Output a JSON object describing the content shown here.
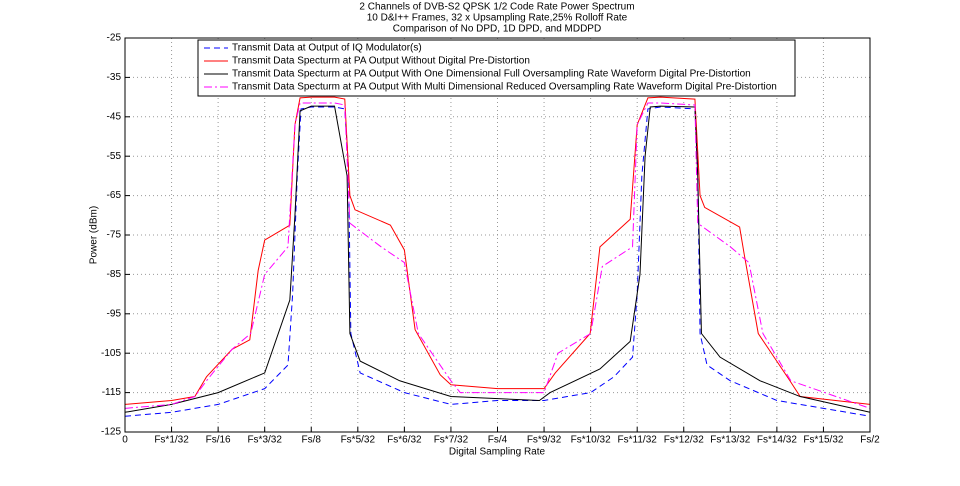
{
  "chart_data": {
    "type": "line",
    "title": [
      "2 Channels of DVB-S2 QPSK 1/2 Code Rate Power Spectrum",
      "10 D&I++ Frames, 32 x Upsampling Rate,25% Rolloff Rate",
      "Comparison of No DPD, 1D DPD, and MDDPD"
    ],
    "x_label": "Digital Sampling Rate",
    "y_label": "Power (dBm)",
    "xlim": [
      0,
      16
    ],
    "ylim": [
      -125,
      -25
    ],
    "xticks": [
      0,
      {
        "value": 1,
        "label": "Fs*1/32"
      },
      {
        "value": 2,
        "label": "Fs/16"
      },
      {
        "value": 3,
        "label": "Fs*3/32"
      },
      {
        "value": 4,
        "label": "Fs/8"
      },
      {
        "value": 5,
        "label": "Fs*5/32"
      },
      {
        "value": 6,
        "label": "Fs*6/32"
      },
      {
        "value": 7,
        "label": "Fs*7/32"
      },
      {
        "value": 8,
        "label": "Fs/4"
      },
      {
        "value": 9,
        "label": "Fs*9/32"
      },
      {
        "value": 10,
        "label": "Fs*10/32"
      },
      {
        "value": 11,
        "label": "Fs*11/32"
      },
      {
        "value": 12,
        "label": "Fs*12/32"
      },
      {
        "value": 13,
        "label": "Fs*13/32"
      },
      {
        "value": 14,
        "label": "Fs*14/32"
      },
      {
        "value": 15,
        "label": "Fs*15/32"
      },
      {
        "value": 16,
        "label": "Fs/2"
      }
    ],
    "yticks": [
      -125,
      -115,
      -105,
      -95,
      -85,
      -75,
      -65,
      -55,
      -45,
      -35,
      -25
    ],
    "grid": true,
    "legend": "upper left",
    "series": [
      {
        "name": "Transmit Data at Output of IQ Modulator(s)",
        "color": "#0000ff",
        "dash": "6 4",
        "x": [
          0,
          1,
          2,
          3,
          3.5,
          3.6,
          3.7,
          3.78,
          4,
          4.5,
          4.72,
          4.8,
          4.85,
          5.05,
          6,
          7,
          8,
          9,
          9.5,
          10,
          10.5,
          10.9,
          11.0,
          11.1,
          11.23,
          11.5,
          12.24,
          12.3,
          12.35,
          12.5,
          13,
          14,
          15,
          16
        ],
        "values": [
          -121,
          -120,
          -118,
          -114,
          -108,
          -90,
          -60,
          -43,
          -42.5,
          -42.5,
          -43,
          -58,
          -100,
          -110,
          -115,
          -118,
          -117,
          -117,
          -116,
          -115,
          -111,
          -106,
          -90,
          -60,
          -43,
          -42.5,
          -43,
          -58,
          -100,
          -108,
          -112,
          -117,
          -119,
          -121
        ]
      },
      {
        "name": "Transmit Data Specturm at PA Output Without Digital Pre-Distortion",
        "color": "#ff0000",
        "dash": "none",
        "x": [
          0,
          1,
          1.5,
          1.75,
          2.3,
          2.68,
          2.86,
          3,
          3.54,
          3.65,
          3.76,
          4,
          4.5,
          4.72,
          4.83,
          4.94,
          5.7,
          6,
          6.23,
          6.77,
          7,
          8,
          9,
          9.24,
          9.99,
          10.2,
          10.85,
          11,
          11.23,
          11.5,
          12.24,
          12.35,
          12.45,
          13.2,
          13.3,
          13.6,
          14.28,
          14.5,
          16
        ],
        "values": [
          -118,
          -117,
          -116,
          -111,
          -104,
          -101.6,
          -84,
          -76.3,
          -72.5,
          -47,
          -40.2,
          -40,
          -40,
          -40.5,
          -65,
          -68.6,
          -72.5,
          -78.8,
          -99,
          -110.5,
          -113,
          -114,
          -114,
          -110,
          -100,
          -78,
          -71,
          -47,
          -40.2,
          -40,
          -40.5,
          -65,
          -68,
          -73,
          -80,
          -100,
          -112,
          -116,
          -118
        ]
      },
      {
        "name": "Transmit Data Specturm at PA Output With One Dimensional Full Oversampling Rate Waveform Digital Pre-Distortion",
        "color": "#000000",
        "dash": "none",
        "x": [
          0,
          1,
          2,
          3,
          3.54,
          3.65,
          3.76,
          4,
          4.5,
          4.77,
          4.83,
          5.05,
          5.9,
          7,
          8.9,
          9.13,
          10.2,
          10.85,
          11.06,
          11.17,
          11.28,
          11.5,
          12.24,
          12.3,
          12.38,
          12.78,
          13.64,
          14.5,
          16
        ],
        "values": [
          -120,
          -118,
          -115,
          -110,
          -91.5,
          -70,
          -43.5,
          -42.3,
          -42.3,
          -60,
          -100,
          -107,
          -112,
          -116,
          -117,
          -115,
          -109,
          -102,
          -85,
          -55,
          -42.5,
          -42.3,
          -42.5,
          -60,
          -100,
          -106,
          -112,
          -116,
          -120
        ]
      },
      {
        "name": "Transmit Data Specturm at PA Output With Multi Dimensional Reduced Oversampling Rate Waveform Digital Pre-Distortion",
        "color": "#ff00ff",
        "dash": "8 3 2 3",
        "x": [
          0,
          1,
          1.5,
          1.75,
          2.3,
          2.7,
          3,
          3.5,
          3.65,
          3.76,
          4,
          4.5,
          4.72,
          4.83,
          5.5,
          6,
          6.3,
          7,
          7.2,
          9,
          9.3,
          10,
          10.25,
          10.9,
          11,
          11.23,
          11.5,
          12.24,
          12.3,
          13,
          13.4,
          13.7,
          14.3,
          16
        ],
        "values": [
          -119,
          -118,
          -116,
          -112,
          -104,
          -100,
          -85,
          -78,
          -47,
          -41.5,
          -41.5,
          -41.5,
          -42,
          -72,
          -78,
          -82,
          -100,
          -112,
          -115,
          -115,
          -105,
          -100,
          -83,
          -78,
          -47,
          -41.5,
          -41.5,
          -42,
          -72,
          -78,
          -82,
          -100,
          -112,
          -119
        ]
      }
    ]
  }
}
